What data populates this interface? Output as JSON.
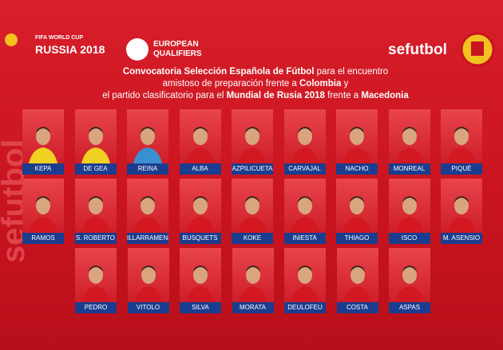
{
  "header": {
    "wc_top": "FIFA WORLD CUP",
    "wc_bottom": "RUSSIA 2018",
    "eq_top": "EUROPEAN",
    "eq_bottom": "QUALIFIERS",
    "brand": "sefutbol"
  },
  "title": {
    "lines": [
      [
        {
          "text": "Convocatoria Selección Española de Fútbol",
          "bold": true
        },
        {
          "text": " para el encuentro",
          "bold": false
        }
      ],
      [
        {
          "text": "amistoso de preparación frente a ",
          "bold": false
        },
        {
          "text": "Colombia",
          "bold": true
        },
        {
          "text": " y",
          "bold": false
        }
      ],
      [
        {
          "text": "el partido clasificatorio para el ",
          "bold": false
        },
        {
          "text": "Mundial de Rusia 2018",
          "bold": true
        },
        {
          "text": " frente a ",
          "bold": false
        },
        {
          "text": "Macedonia",
          "bold": true
        }
      ]
    ]
  },
  "players": {
    "rows": [
      [
        "KEPA",
        "DE GEA",
        "REINA",
        "ALBA",
        "AZPILICUETA",
        "CARVAJAL",
        "NACHO",
        "MONREAL",
        "PIQUÉ"
      ],
      [
        "RAMOS",
        "S. ROBERTO",
        "ILLARRAMENDI",
        "BUSQUETS",
        "KOKE",
        "INIESTA",
        "THIAGO",
        "ISCO",
        "M. ASENSIO"
      ],
      [
        "PEDRO",
        "VITOLO",
        "SILVA",
        "MORATA",
        "DEULOFEU",
        "COSTA",
        "ASPAS"
      ]
    ]
  }
}
